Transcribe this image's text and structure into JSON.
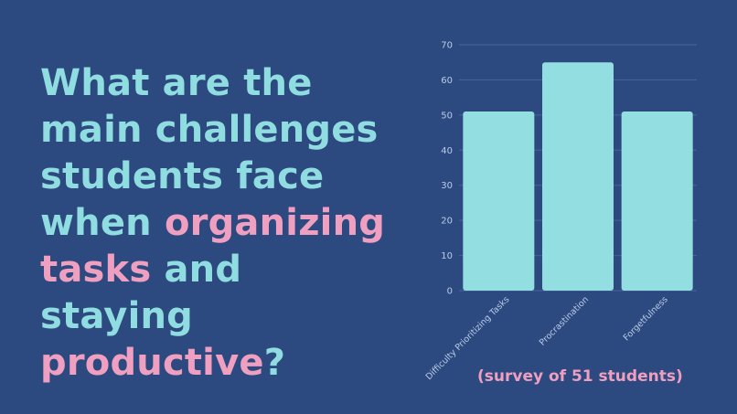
{
  "question": {
    "parts": [
      {
        "text": "What are the main challenges students face when ",
        "style": "teal"
      },
      {
        "text": "organizing",
        "style": "pink"
      },
      {
        "text": " tasks",
        "style": "pink"
      },
      {
        "text": " and staying ",
        "style": "teal"
      },
      {
        "text": "productive",
        "style": "pink"
      },
      {
        "text": "?",
        "style": "teal"
      }
    ]
  },
  "chart_data": {
    "type": "bar",
    "categories": [
      "Difficulty Prioritizing Tasks",
      "Procrastination",
      "Forgetfulness"
    ],
    "values": [
      51,
      65,
      51
    ],
    "ylim": [
      0,
      70
    ],
    "yticks": [
      0,
      10,
      20,
      30,
      40,
      50,
      60,
      70
    ],
    "title": "",
    "xlabel": "",
    "ylabel": "",
    "grid": true,
    "bar_color": "#93dee0",
    "caption": "(survey of 51 students)"
  },
  "colors": {
    "background": "#2d4a80",
    "teal": "#8fdde0",
    "pink": "#ef9fc0",
    "grid": "#46649c",
    "tick": "#b9cbe8"
  }
}
